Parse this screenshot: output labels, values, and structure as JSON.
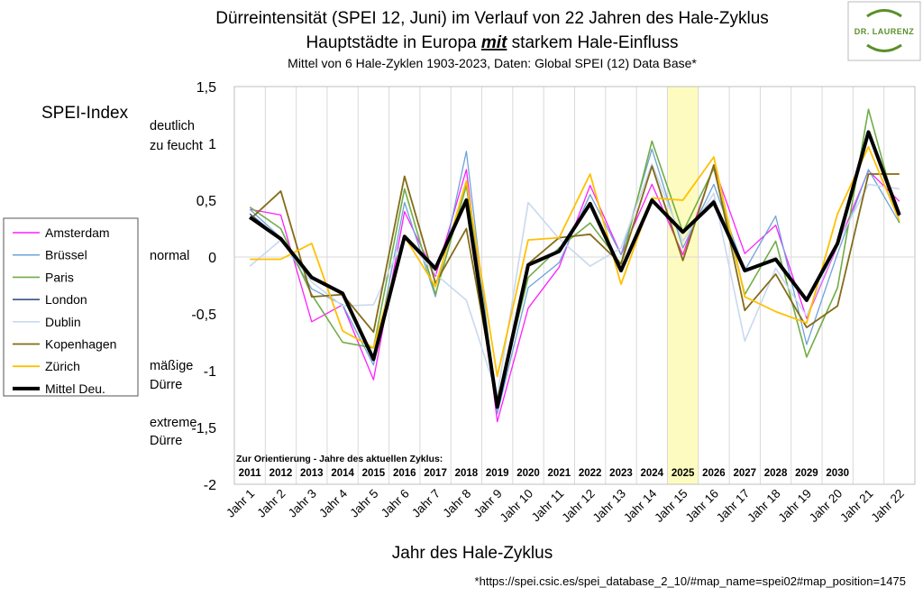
{
  "chart_data": {
    "type": "line",
    "title_line1": "Dürreintensität (SPEI 12, Juni) im Verlauf von 22 Jahren des Hale-Zyklus",
    "title_line2_pre": "Hauptstädte in Europa ",
    "title_line2_emph": "mit",
    "title_line2_post": " starkem Hale-Einfluss",
    "subtitle": "Mittel von 6 Hale-Zyklen 1903-2023, Daten: Global SPEI (12) Data Base*",
    "ylabel": "SPEI-Index",
    "xlabel": "Jahr des Hale-Zyklus",
    "ylim": [
      -2,
      1.5
    ],
    "yticks": [
      -2,
      -1.5,
      -1,
      -0.5,
      0,
      0.5,
      1,
      1.5
    ],
    "ytick_labels": [
      "-2",
      "-1,5",
      "-1",
      "-0,5",
      "0",
      "0,5",
      "1",
      "1,5"
    ],
    "categories": [
      "Jahr 1",
      "Jahr 2",
      "Jahr 3",
      "Jahr 4",
      "Jahr 5",
      "Jahr 6",
      "Jahr 7",
      "Jahr 8",
      "Jahr 9",
      "Jahr 10",
      "Jahr 11",
      "Jahr 12",
      "Jahr 13",
      "Jahr 14",
      "Jahr 15",
      "Jahr 16",
      "Jahr 17",
      "Jahr 18",
      "Jahr 19",
      "Jahr 20",
      "Jahr 21",
      "Jahr 22"
    ],
    "highlight_category": "Jahr 15",
    "highlight_color": "#fdfbbf",
    "grid": "vertical",
    "side_labels": {
      "wet_1": "deutlich",
      "wet_2": "zu feucht",
      "normal": "normal",
      "mild_1": "mäßige",
      "mild_2": "Dürre",
      "extreme_1": "extreme",
      "extreme_2": "Dürre"
    },
    "orientation_label": "Zur Orientierung - Jahre des aktuellen Zyklus:",
    "cycle_years": [
      "2011",
      "2012",
      "2013",
      "2014",
      "2015",
      "2016",
      "2017",
      "2018",
      "2019",
      "2020",
      "2021",
      "2022",
      "2023",
      "2024",
      "2025",
      "2026",
      "2027",
      "2028",
      "2029",
      "2030"
    ],
    "legend_position": "left",
    "series": [
      {
        "name": "Amsterdam",
        "color": "#ff1fff",
        "width": 1.3,
        "values": [
          0.42,
          0.37,
          -0.57,
          -0.42,
          -1.08,
          0.4,
          -0.17,
          0.77,
          -1.45,
          -0.45,
          -0.09,
          0.63,
          0.02,
          0.64,
          0.02,
          0.8,
          0.03,
          0.28,
          -0.54,
          0.1,
          0.76,
          0.49
        ]
      },
      {
        "name": "Brüssel",
        "color": "#6ea3d8",
        "width": 1.3,
        "values": [
          0.42,
          0.17,
          -0.28,
          -0.42,
          -0.95,
          0.48,
          -0.35,
          0.93,
          -1.38,
          -0.27,
          -0.05,
          0.55,
          0.02,
          0.95,
          0.08,
          0.64,
          -0.12,
          0.36,
          -0.77,
          0.03,
          0.77,
          0.3
        ]
      },
      {
        "name": "Paris",
        "color": "#70ad47",
        "width": 1.6,
        "values": [
          0.44,
          0.25,
          -0.33,
          -0.75,
          -0.8,
          0.6,
          -0.33,
          0.63,
          -1.28,
          -0.18,
          0.08,
          0.3,
          -0.06,
          1.02,
          0.22,
          0.78,
          -0.33,
          0.14,
          -0.88,
          -0.27,
          1.3,
          0.3
        ]
      },
      {
        "name": "London",
        "color": "#264478",
        "width": 1.3,
        "values": [
          0.38,
          0.16,
          -0.18,
          -0.32,
          -0.9,
          0.18,
          -0.12,
          0.48,
          -1.32,
          -0.08,
          0.04,
          0.46,
          -0.12,
          0.5,
          0.23,
          0.5,
          -0.12,
          -0.02,
          -0.36,
          0.12,
          1.08,
          0.36
        ]
      },
      {
        "name": "Dublin",
        "color": "#c9d9ef",
        "width": 1.6,
        "values": [
          -0.08,
          0.15,
          -0.22,
          -0.43,
          -0.42,
          0.18,
          -0.15,
          -0.38,
          -1.22,
          0.48,
          0.16,
          -0.08,
          0.08,
          0.82,
          0.14,
          0.56,
          -0.74,
          -0.1,
          -0.52,
          0.12,
          0.64,
          0.6
        ]
      },
      {
        "name": "Kopenhagen",
        "color": "#846b17",
        "width": 1.8,
        "values": [
          0.33,
          0.58,
          -0.35,
          -0.33,
          -0.66,
          0.71,
          -0.23,
          0.25,
          -1.27,
          -0.06,
          0.17,
          0.2,
          -0.06,
          0.8,
          -0.03,
          0.81,
          -0.47,
          -0.15,
          -0.62,
          -0.43,
          0.73,
          0.73
        ]
      },
      {
        "name": "Zürich",
        "color": "#ffc000",
        "width": 1.8,
        "values": [
          -0.02,
          -0.02,
          0.12,
          -0.65,
          -0.8,
          0.18,
          -0.26,
          0.67,
          -1.05,
          0.15,
          0.17,
          0.73,
          -0.24,
          0.52,
          0.5,
          0.88,
          -0.35,
          -0.48,
          -0.58,
          0.38,
          0.97,
          0.32
        ]
      },
      {
        "name": "Mittel Deu.",
        "color": "#000000",
        "width": 4,
        "values": [
          0.35,
          0.16,
          -0.18,
          -0.32,
          -0.9,
          0.18,
          -0.1,
          0.5,
          -1.32,
          -0.07,
          0.05,
          0.47,
          -0.12,
          0.5,
          0.22,
          0.48,
          -0.12,
          -0.02,
          -0.38,
          0.12,
          1.1,
          0.37
        ]
      }
    ],
    "footnote": "*https://spei.csic.es/spei_database_2_10/#map_name=spei02#map_position=1475"
  },
  "logo": {
    "text": "DR. LAURENZ",
    "color": "#5a8f2a"
  }
}
